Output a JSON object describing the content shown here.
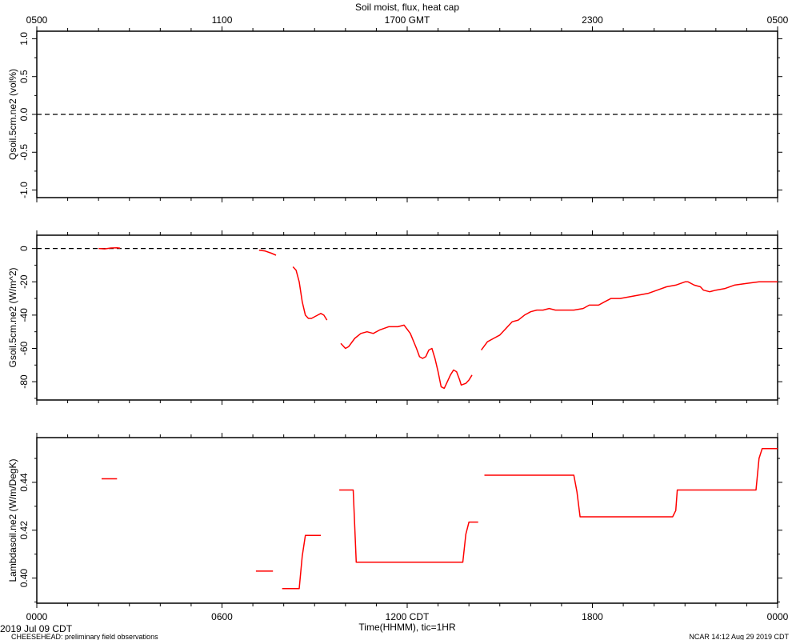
{
  "title": "Soil moist, flux, heat cap",
  "top_axis": {
    "ticks": [
      {
        "hour": 0,
        "label": "0500"
      },
      {
        "hour": 6,
        "label": "1100"
      },
      {
        "hour": 12,
        "label": "1700 GMT"
      },
      {
        "hour": 18,
        "label": "2300"
      },
      {
        "hour": 24,
        "label": "0500"
      }
    ]
  },
  "bottom_axis": {
    "ticks": [
      {
        "hour": 0,
        "label": "0000"
      },
      {
        "hour": 6,
        "label": "0600"
      },
      {
        "hour": 12,
        "label": "1200 CDT"
      },
      {
        "hour": 18,
        "label": "1800"
      },
      {
        "hour": 24,
        "label": "0000"
      }
    ],
    "xlabel": "Time(HHMM), tic=1HR"
  },
  "footer": {
    "date": "2019 Jul 09 CDT",
    "left": "CHEESEHEAD: preliminary field observations",
    "right": "NCAR 14:12 Aug 29 2019 CDT"
  },
  "colors": {
    "series": "#ff0000",
    "axes": "#000000",
    "reference": "#000000"
  },
  "chart_data": [
    {
      "type": "line",
      "ylabel": "Qsoil.5cm.ne2 (vol%)",
      "xlim": [
        0,
        24
      ],
      "ylim": [
        -1.1,
        1.1
      ],
      "yticks": [
        {
          "v": -1.0,
          "label": "-1.0"
        },
        {
          "v": -0.5,
          "label": "-0.5"
        },
        {
          "v": 0.0,
          "label": "0.0"
        },
        {
          "v": 0.5,
          "label": "0.5"
        },
        {
          "v": 1.0,
          "label": "1.0"
        }
      ],
      "reference_line": 0,
      "series": [
        {
          "segments": []
        }
      ]
    },
    {
      "type": "line",
      "ylabel": "Gsoil.5cm.ne2 (W/m^2)",
      "xlim": [
        0,
        24
      ],
      "ylim": [
        -91,
        8
      ],
      "yticks": [
        {
          "v": -80,
          "label": "-80"
        },
        {
          "v": -60,
          "label": "-60"
        },
        {
          "v": -40,
          "label": "-40"
        },
        {
          "v": -20,
          "label": "-20"
        },
        {
          "v": 0,
          "label": "0"
        }
      ],
      "reference_line": 0,
      "series": [
        {
          "segments": [
            [
              [
                2.0,
                0
              ],
              [
                2.2,
                -0.2
              ],
              [
                2.4,
                0.3
              ],
              [
                2.6,
                0.4
              ],
              [
                2.7,
                0.2
              ]
            ],
            [
              [
                7.2,
                -1.0
              ],
              [
                7.4,
                -1.5
              ],
              [
                7.6,
                -2.8
              ],
              [
                7.75,
                -4.0
              ]
            ],
            [
              [
                8.3,
                -11
              ],
              [
                8.4,
                -13
              ],
              [
                8.5,
                -20
              ],
              [
                8.6,
                -32
              ],
              [
                8.7,
                -40
              ],
              [
                8.8,
                -42
              ],
              [
                8.9,
                -42
              ],
              [
                9.1,
                -40
              ],
              [
                9.2,
                -39
              ],
              [
                9.3,
                -40
              ],
              [
                9.4,
                -43
              ]
            ],
            [
              [
                9.85,
                -57
              ],
              [
                10.0,
                -60
              ],
              [
                10.1,
                -59
              ],
              [
                10.3,
                -54
              ],
              [
                10.5,
                -51
              ],
              [
                10.7,
                -50
              ],
              [
                10.9,
                -51
              ],
              [
                11.1,
                -49
              ],
              [
                11.4,
                -47
              ],
              [
                11.7,
                -47
              ],
              [
                11.9,
                -46
              ],
              [
                12.1,
                -51
              ],
              [
                12.3,
                -60
              ],
              [
                12.4,
                -65
              ],
              [
                12.5,
                -66
              ],
              [
                12.6,
                -65
              ],
              [
                12.7,
                -61
              ],
              [
                12.8,
                -60
              ],
              [
                12.9,
                -66
              ],
              [
                13.0,
                -74
              ],
              [
                13.1,
                -83
              ],
              [
                13.2,
                -84
              ],
              [
                13.3,
                -80
              ],
              [
                13.4,
                -76
              ],
              [
                13.5,
                -73
              ],
              [
                13.6,
                -74
              ],
              [
                13.7,
                -79
              ],
              [
                13.75,
                -82
              ],
              [
                13.9,
                -81
              ],
              [
                14.0,
                -79
              ],
              [
                14.1,
                -76
              ]
            ],
            [
              [
                14.4,
                -61
              ],
              [
                14.6,
                -56
              ],
              [
                14.8,
                -54
              ],
              [
                15.0,
                -52
              ],
              [
                15.2,
                -48
              ],
              [
                15.4,
                -44
              ],
              [
                15.6,
                -43
              ],
              [
                15.8,
                -40
              ],
              [
                16.0,
                -38
              ],
              [
                16.2,
                -37
              ],
              [
                16.4,
                -37
              ],
              [
                16.6,
                -36
              ],
              [
                16.8,
                -37
              ],
              [
                17.0,
                -37
              ],
              [
                17.2,
                -37
              ],
              [
                17.4,
                -37
              ],
              [
                17.7,
                -36
              ],
              [
                17.9,
                -34
              ],
              [
                18.2,
                -34
              ],
              [
                18.4,
                -32
              ],
              [
                18.6,
                -30
              ],
              [
                18.9,
                -30
              ],
              [
                19.2,
                -29
              ],
              [
                19.5,
                -28
              ],
              [
                19.8,
                -27
              ],
              [
                20.1,
                -25
              ],
              [
                20.4,
                -23
              ],
              [
                20.7,
                -22
              ],
              [
                21.0,
                -20
              ],
              [
                21.1,
                -20
              ],
              [
                21.3,
                -22
              ],
              [
                21.5,
                -23
              ],
              [
                21.6,
                -25
              ],
              [
                21.8,
                -26
              ],
              [
                22.0,
                -25
              ],
              [
                22.3,
                -24
              ],
              [
                22.6,
                -22
              ],
              [
                23.0,
                -21
              ],
              [
                23.4,
                -20
              ],
              [
                23.8,
                -20
              ],
              [
                24.0,
                -20
              ]
            ]
          ]
        }
      ]
    },
    {
      "type": "line",
      "ylabel": "Lambdasoil.ne2 (W/m/DegK)",
      "xlim": [
        0,
        24
      ],
      "ylim": [
        0.3895,
        0.4587
      ],
      "yticks": [
        {
          "v": 0.4,
          "label": "0.40"
        },
        {
          "v": 0.42,
          "label": "0.42"
        },
        {
          "v": 0.44,
          "label": "0.44"
        }
      ],
      "reference_line": null,
      "series": [
        {
          "segments": [
            [
              [
                2.1,
                0.4415
              ],
              [
                2.6,
                0.4415
              ]
            ],
            [
              [
                7.1,
                0.4029
              ],
              [
                7.65,
                0.4029
              ]
            ],
            [
              [
                7.95,
                0.3956
              ],
              [
                8.5,
                0.3956
              ],
              [
                8.6,
                0.4092
              ],
              [
                8.7,
                0.4178
              ],
              [
                9.2,
                0.4178
              ]
            ],
            [
              [
                9.8,
                0.4368
              ],
              [
                10.25,
                0.4368
              ],
              [
                10.35,
                0.4066
              ],
              [
                13.8,
                0.4066
              ],
              [
                13.9,
                0.4183
              ],
              [
                14.0,
                0.4234
              ],
              [
                14.3,
                0.4234
              ]
            ],
            [
              [
                14.5,
                0.443
              ],
              [
                17.4,
                0.443
              ],
              [
                17.5,
                0.436
              ],
              [
                17.6,
                0.4256
              ],
              [
                20.6,
                0.4256
              ],
              [
                20.7,
                0.4282
              ],
              [
                20.75,
                0.4368
              ],
              [
                23.3,
                0.4368
              ],
              [
                23.4,
                0.45
              ],
              [
                23.5,
                0.4541
              ],
              [
                24.0,
                0.4541
              ]
            ]
          ]
        }
      ]
    }
  ]
}
